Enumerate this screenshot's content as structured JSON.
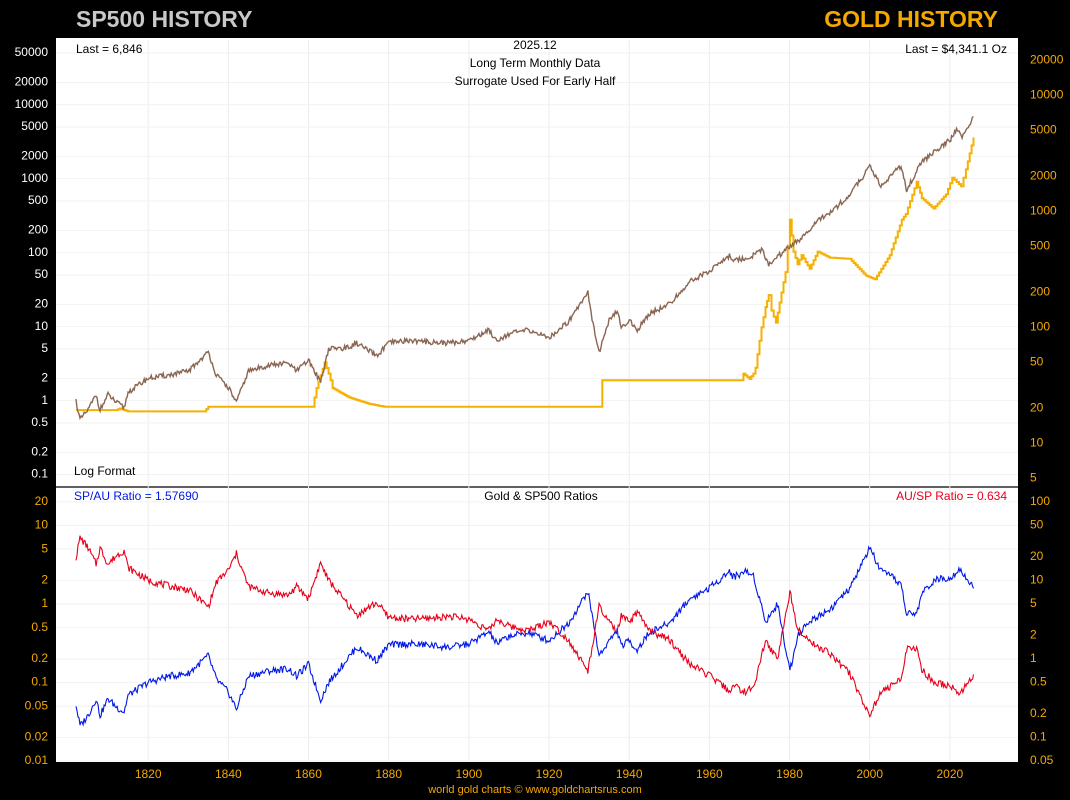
{
  "header": {
    "left_title": "SP500 HISTORY",
    "right_title": "GOLD HISTORY"
  },
  "footer": {
    "text": "world gold charts © www.goldchartsrus.com"
  },
  "colors": {
    "sp500": "#8a6552",
    "gold": "#f5b000",
    "sp_au": "#0018e8",
    "au_sp": "#e8001a",
    "left_axis": "#ffffff",
    "right_axis": "#f5a800",
    "x_axis": "#f5a800"
  },
  "chart_data": [
    {
      "type": "line",
      "scale": "log",
      "labels": {
        "last_sp": "Last = 6,846",
        "date": "2025.12",
        "subtitle1": "Long Term Monthly Data",
        "subtitle2": "Surrogate Used For Early Half",
        "last_gold": "Last = $4,341.1 Oz",
        "log_note": "Log Format"
      },
      "y_left_ticks": [
        0.1,
        0.2,
        0.5,
        1,
        2,
        5,
        10,
        20,
        50,
        100,
        200,
        500,
        1000,
        2000,
        5000,
        10000,
        20000,
        50000
      ],
      "y_left_range": [
        0.07,
        75000
      ],
      "y_right_ticks": [
        5,
        10,
        20,
        50,
        100,
        200,
        500,
        1000,
        2000,
        5000,
        10000,
        20000
      ],
      "y_right_range": [
        4.3,
        30000
      ],
      "series": [
        {
          "name": "SP500",
          "axis": "left",
          "x": [
            1802,
            1803,
            1805,
            1807,
            1808,
            1810,
            1812,
            1814,
            1815,
            1820,
            1825,
            1830,
            1835,
            1836,
            1837,
            1840,
            1842,
            1845,
            1850,
            1855,
            1857,
            1860,
            1863,
            1865,
            1870,
            1872,
            1877,
            1880,
            1885,
            1890,
            1895,
            1900,
            1905,
            1907,
            1910,
            1915,
            1920,
            1925,
            1929.7,
            1930.5,
            1932.5,
            1935,
            1937,
            1938,
            1940,
            1942,
            1945,
            1950,
            1955,
            1960,
            1965,
            1966,
            1970,
            1973,
            1974.8,
            1980,
            1985,
            1987,
            1990,
            1995,
            2000,
            2002.8,
            2007.8,
            2009.2,
            2013,
            2020.2,
            2021.9,
            2022.8,
            2025.9
          ],
          "y": [
            1.0,
            0.55,
            0.75,
            1.2,
            0.75,
            1.2,
            0.95,
            0.8,
            1.3,
            2.0,
            2.2,
            2.5,
            4.5,
            3.2,
            2.2,
            1.5,
            0.95,
            2.5,
            3.0,
            3.2,
            2.5,
            3.5,
            1.8,
            5.0,
            5.2,
            6.0,
            4.0,
            6.0,
            6.5,
            6.2,
            6.0,
            6.5,
            9.0,
            6.5,
            8.0,
            9.0,
            7.0,
            12.0,
            30.0,
            15.0,
            4.5,
            12.0,
            16.0,
            10.0,
            12.0,
            9.0,
            15.0,
            20.0,
            40.0,
            57.0,
            90.0,
            80.0,
            85.0,
            110.0,
            70.0,
            120.0,
            190.0,
            280.0,
            340.0,
            600.0,
            1450.0,
            800.0,
            1500.0,
            700.0,
            1700.0,
            3400.0,
            4700.0,
            3600.0,
            6846.0
          ]
        },
        {
          "name": "Gold",
          "axis": "right",
          "x": [
            1802,
            1812,
            1813,
            1815,
            1834,
            1835,
            1837,
            1838,
            1861,
            1862,
            1864,
            1865,
            1865.5,
            1866,
            1870,
            1875,
            1879,
            1880,
            1933,
            1933.3,
            1934.5,
            1950,
            1955,
            1958,
            1968,
            1968.5,
            1970,
            1971,
            1971.5,
            1973,
            1974,
            1974.8,
            1975.5,
            1976.6,
            1978,
            1979,
            1980.1,
            1981,
            1982,
            1983,
            1985,
            1987,
            1990,
            1995,
            1999,
            2001.3,
            2005,
            2008,
            2009,
            2011.7,
            2013,
            2015.9,
            2019,
            2020.6,
            2022.8,
            2024,
            2025.9
          ],
          "y": [
            19.4,
            19.4,
            20.0,
            18.9,
            18.9,
            20.7,
            20.7,
            20.7,
            20.7,
            30.0,
            50.0,
            40.0,
            35.0,
            30.0,
            25.0,
            22.0,
            20.7,
            20.7,
            20.7,
            35.0,
            35.0,
            35.0,
            35.0,
            35.0,
            35.0,
            40.0,
            36.0,
            40.0,
            45.0,
            100.0,
            150.0,
            190.0,
            140.0,
            110.0,
            200.0,
            300.0,
            850.0,
            450.0,
            350.0,
            420.0,
            320.0,
            450.0,
            400.0,
            390.0,
            280.0,
            260.0,
            420.0,
            850.0,
            950.0,
            1800.0,
            1300.0,
            1060.0,
            1400.0,
            1950.0,
            1650.0,
            2300.0,
            4341.1
          ]
        }
      ]
    },
    {
      "type": "line",
      "scale": "log",
      "labels": {
        "sp_au_label": "SP/AU Ratio = 1.57690",
        "title": "Gold & SP500 Ratios",
        "au_sp_label": "AU/SP Ratio = 0.634"
      },
      "y_left_ticks": [
        0.01,
        0.02,
        0.05,
        0.1,
        0.2,
        0.5,
        1,
        2,
        5,
        10,
        20
      ],
      "y_left_range": [
        0.01,
        30
      ],
      "y_right_ticks": [
        0.05,
        0.1,
        0.2,
        0.5,
        1,
        2,
        5,
        10,
        20,
        50,
        100
      ],
      "y_right_range": [
        0.05,
        150
      ],
      "x_ticks": [
        1820,
        1840,
        1860,
        1880,
        1900,
        1920,
        1940,
        1960,
        1980,
        2000,
        2020
      ],
      "x_range": [
        1797,
        2037
      ],
      "series": [
        {
          "name": "SP/AU Ratio",
          "axis": "left",
          "x": [
            1802,
            1803,
            1805,
            1807,
            1808,
            1810,
            1812,
            1814,
            1815,
            1820,
            1825,
            1830,
            1835,
            1837,
            1840,
            1842,
            1845,
            1850,
            1855,
            1857,
            1860,
            1863,
            1865,
            1870,
            1872,
            1877,
            1880,
            1885,
            1890,
            1895,
            1900,
            1905,
            1907,
            1910,
            1915,
            1920,
            1925,
            1929.7,
            1932.5,
            1935,
            1937,
            1938,
            1940,
            1942,
            1945,
            1950,
            1955,
            1960,
            1965,
            1966,
            1969,
            1971,
            1974,
            1975,
            1977,
            1980.1,
            1982,
            1985,
            1987,
            1990,
            1995,
            2000,
            2002.8,
            2005,
            2007.8,
            2009.2,
            2011.7,
            2013,
            2016,
            2020.2,
            2022.5,
            2024,
            2025.9
          ],
          "y": [
            0.052,
            0.028,
            0.038,
            0.062,
            0.038,
            0.062,
            0.049,
            0.042,
            0.069,
            0.1,
            0.12,
            0.13,
            0.22,
            0.11,
            0.075,
            0.046,
            0.12,
            0.14,
            0.15,
            0.12,
            0.17,
            0.06,
            0.1,
            0.21,
            0.28,
            0.19,
            0.3,
            0.31,
            0.3,
            0.28,
            0.31,
            0.44,
            0.31,
            0.39,
            0.43,
            0.34,
            0.58,
            1.45,
            0.22,
            0.34,
            0.46,
            0.29,
            0.34,
            0.26,
            0.43,
            0.57,
            1.15,
            1.6,
            2.6,
            2.2,
            2.6,
            2.3,
            0.6,
            0.7,
            1.0,
            0.14,
            0.4,
            0.6,
            0.7,
            0.85,
            1.55,
            5.2,
            2.6,
            2.3,
            1.8,
            0.75,
            0.75,
            1.35,
            2.0,
            2.2,
            2.8,
            2.2,
            1.577
          ]
        },
        {
          "name": "AU/SP Ratio",
          "axis": "right",
          "x": [
            1802,
            1803,
            1805,
            1807,
            1808,
            1810,
            1812,
            1814,
            1815,
            1820,
            1825,
            1830,
            1835,
            1837,
            1840,
            1842,
            1845,
            1850,
            1855,
            1857,
            1860,
            1863,
            1865,
            1870,
            1872,
            1877,
            1880,
            1885,
            1890,
            1895,
            1900,
            1905,
            1907,
            1910,
            1915,
            1920,
            1925,
            1929.7,
            1932.5,
            1935,
            1937,
            1938,
            1940,
            1942,
            1945,
            1950,
            1955,
            1960,
            1965,
            1966,
            1969,
            1971,
            1974,
            1975,
            1977,
            1980.1,
            1982,
            1985,
            1987,
            1990,
            1995,
            2000,
            2002.8,
            2005,
            2007.8,
            2009.2,
            2011.7,
            2013,
            2016,
            2020.2,
            2022.5,
            2024,
            2025.9
          ],
          "y": [
            19.4,
            35.0,
            26.0,
            16.0,
            26.0,
            16.0,
            20.5,
            24.0,
            14.5,
            10.0,
            8.5,
            7.6,
            4.6,
            9.4,
            13.5,
            21.8,
            8.3,
            6.9,
            6.5,
            8.3,
            5.9,
            16.6,
            10.0,
            4.8,
            3.6,
            5.2,
            3.4,
            3.2,
            3.3,
            3.5,
            3.2,
            2.3,
            3.2,
            2.6,
            2.3,
            3.0,
            1.7,
            0.69,
            4.6,
            2.9,
            2.2,
            3.5,
            2.9,
            3.9,
            2.3,
            1.75,
            0.87,
            0.61,
            0.39,
            0.45,
            0.38,
            0.43,
            1.7,
            1.4,
            1.0,
            7.1,
            2.5,
            1.7,
            1.4,
            1.2,
            0.65,
            0.19,
            0.38,
            0.43,
            0.56,
            1.34,
            1.34,
            0.74,
            0.5,
            0.45,
            0.36,
            0.45,
            0.634
          ]
        }
      ]
    }
  ]
}
